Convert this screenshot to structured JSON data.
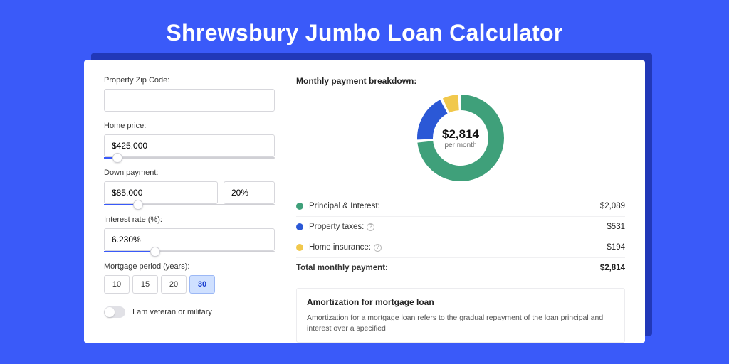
{
  "title": "Shrewsbury Jumbo Loan Calculator",
  "colors": {
    "page_bg": "#3a5af9",
    "shadow": "#2138b8",
    "card_bg": "#ffffff",
    "input_border": "#d7d7dc",
    "slider_fill": "#3a5af9",
    "slider_track": "#d0d0d5",
    "period_active_bg": "#cfe0ff",
    "period_active_border": "#9cb8f5"
  },
  "form": {
    "zip": {
      "label": "Property Zip Code:",
      "value": ""
    },
    "price": {
      "label": "Home price:",
      "value": "$425,000",
      "slider_pct": 8
    },
    "down": {
      "label": "Down payment:",
      "amount": "$85,000",
      "pct": "20%",
      "slider_pct": 20
    },
    "rate": {
      "label": "Interest rate (%):",
      "value": "6.230%",
      "slider_pct": 30
    },
    "period": {
      "label": "Mortgage period (years):",
      "options": [
        "10",
        "15",
        "20",
        "30"
      ],
      "active": "30"
    },
    "veteran": {
      "label": "I am veteran or military",
      "checked": false
    }
  },
  "breakdown": {
    "title": "Monthly payment breakdown:",
    "center_amount": "$2,814",
    "center_sub": "per month",
    "chart": {
      "segments": [
        {
          "key": "principal_interest",
          "value": 2089,
          "color": "#3fa07a"
        },
        {
          "key": "property_taxes",
          "value": 531,
          "color": "#2b58d6"
        },
        {
          "key": "home_insurance",
          "value": 194,
          "color": "#f1c84c"
        }
      ],
      "radius": 50,
      "stroke": 22,
      "gap_deg": 4
    },
    "rows": [
      {
        "label": "Principal & Interest:",
        "value": "$2,089",
        "color": "#3fa07a",
        "info": false
      },
      {
        "label": "Property taxes:",
        "value": "$531",
        "color": "#2b58d6",
        "info": true
      },
      {
        "label": "Home insurance:",
        "value": "$194",
        "color": "#f1c84c",
        "info": true
      }
    ],
    "total": {
      "label": "Total monthly payment:",
      "value": "$2,814"
    }
  },
  "amortization": {
    "title": "Amortization for mortgage loan",
    "body": "Amortization for a mortgage loan refers to the gradual repayment of the loan principal and interest over a specified"
  }
}
